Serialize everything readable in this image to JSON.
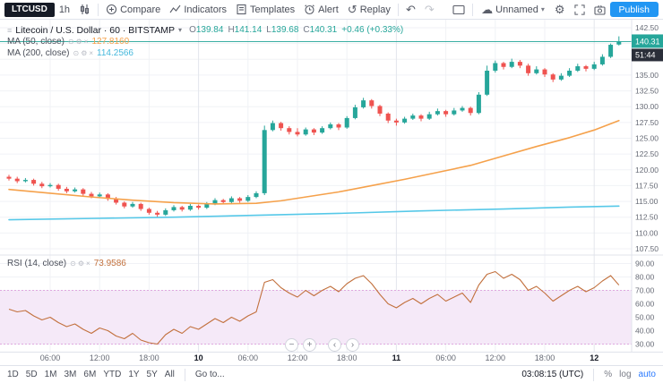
{
  "toolbar": {
    "symbol": "LTCUSD",
    "interval": "1h",
    "compare": "Compare",
    "indicators": "Indicators",
    "templates": "Templates",
    "alert": "Alert",
    "replay": "Replay",
    "layout_name": "Unnamed",
    "publish": "Publish"
  },
  "icons": {
    "replay": "↺",
    "undo": "↶",
    "redo": "↷",
    "gear": "⚙",
    "cloud": "☁",
    "caret_down": "▾",
    "menu": "≡",
    "eye": "⊙",
    "settings": "⚙",
    "close": "×"
  },
  "legend": {
    "title": "Litecoin / U.S. Dollar · 60 · BITSTAMP",
    "ohlc": {
      "o_label": "O",
      "o": "139.84",
      "h_label": "H",
      "h": "141.14",
      "l_label": "L",
      "l": "139.68",
      "c_label": "C",
      "c": "140.31",
      "change": "+0.46 (+0.33%)"
    },
    "ma50": {
      "label": "MA (50, close)",
      "value": "127.8160"
    },
    "ma200": {
      "label": "MA (200, close)",
      "value": "114.2566"
    },
    "rsi": {
      "label": "RSI (14, close)",
      "value": "73.9586"
    }
  },
  "chart_data": {
    "type": "candlestick",
    "colors": {
      "up": "#26a69a",
      "down": "#ef5350",
      "ma50": "#f5a14b",
      "ma200": "#56c8e8",
      "rsi_line": "#c2703d",
      "rsi_band_fill": "#f5e9f8",
      "rsi_band_border": "#dfa8df",
      "price_line": "#26a69a",
      "grid": "#f0f2f6",
      "grid_strong": "#e3e6ec",
      "axis_text": "#676b76",
      "countdown_bg": "#2a2e39"
    },
    "candles": [
      [
        118.9,
        119.2,
        118.3,
        118.6
      ],
      [
        118.6,
        118.9,
        117.9,
        118.2
      ],
      [
        118.2,
        118.7,
        118.0,
        118.4
      ],
      [
        118.4,
        118.6,
        117.5,
        117.8
      ],
      [
        117.8,
        118.1,
        117.1,
        117.4
      ],
      [
        117.4,
        117.9,
        117.2,
        117.6
      ],
      [
        117.6,
        117.8,
        116.7,
        117.0
      ],
      [
        117.0,
        117.3,
        116.3,
        116.6
      ],
      [
        116.6,
        117.2,
        116.4,
        116.9
      ],
      [
        116.9,
        117.1,
        115.9,
        116.2
      ],
      [
        116.2,
        116.5,
        115.5,
        115.8
      ],
      [
        115.8,
        116.4,
        115.6,
        116.1
      ],
      [
        116.1,
        116.3,
        115.1,
        115.4
      ],
      [
        115.4,
        115.7,
        114.5,
        114.8
      ],
      [
        114.8,
        115.0,
        113.9,
        114.2
      ],
      [
        114.2,
        114.9,
        114.0,
        114.6
      ],
      [
        114.6,
        114.8,
        113.5,
        113.8
      ],
      [
        113.8,
        114.0,
        112.9,
        113.2
      ],
      [
        113.2,
        113.5,
        112.5,
        112.9
      ],
      [
        112.9,
        113.9,
        112.7,
        113.6
      ],
      [
        113.6,
        114.4,
        113.4,
        114.1
      ],
      [
        114.1,
        114.3,
        113.4,
        113.7
      ],
      [
        113.7,
        114.6,
        113.5,
        114.3
      ],
      [
        114.3,
        114.5,
        113.7,
        114.0
      ],
      [
        114.0,
        114.9,
        113.8,
        114.6
      ],
      [
        114.6,
        115.5,
        114.4,
        115.2
      ],
      [
        115.2,
        115.4,
        114.6,
        114.9
      ],
      [
        114.9,
        115.8,
        114.7,
        115.5
      ],
      [
        115.5,
        115.7,
        114.8,
        115.1
      ],
      [
        115.1,
        116.0,
        114.9,
        115.7
      ],
      [
        115.7,
        116.6,
        115.5,
        116.3
      ],
      [
        116.3,
        127.0,
        116.0,
        126.3
      ],
      [
        126.3,
        127.8,
        126.1,
        127.4
      ],
      [
        127.4,
        127.6,
        126.2,
        126.6
      ],
      [
        126.6,
        126.9,
        125.6,
        126.0
      ],
      [
        126.0,
        126.6,
        125.3,
        125.6
      ],
      [
        125.6,
        126.7,
        125.4,
        126.4
      ],
      [
        126.4,
        126.6,
        125.5,
        125.9
      ],
      [
        125.9,
        126.9,
        125.7,
        126.6
      ],
      [
        126.6,
        127.5,
        126.4,
        127.2
      ],
      [
        127.2,
        127.4,
        126.3,
        126.7
      ],
      [
        126.7,
        128.5,
        126.5,
        128.2
      ],
      [
        128.2,
        130.3,
        128.0,
        129.9
      ],
      [
        129.9,
        131.4,
        129.7,
        131.0
      ],
      [
        131.0,
        131.2,
        129.7,
        130.1
      ],
      [
        130.1,
        130.3,
        128.5,
        128.9
      ],
      [
        128.9,
        129.1,
        127.4,
        127.8
      ],
      [
        127.8,
        128.1,
        127.0,
        127.5
      ],
      [
        127.5,
        128.4,
        127.3,
        128.1
      ],
      [
        128.1,
        128.9,
        127.9,
        128.6
      ],
      [
        128.6,
        128.8,
        127.7,
        128.1
      ],
      [
        128.1,
        129.2,
        127.9,
        128.8
      ],
      [
        128.8,
        129.7,
        128.6,
        129.3
      ],
      [
        129.3,
        129.5,
        128.4,
        128.8
      ],
      [
        128.8,
        129.8,
        128.6,
        129.4
      ],
      [
        129.4,
        130.1,
        129.2,
        129.8
      ],
      [
        129.8,
        130.0,
        128.6,
        129.0
      ],
      [
        129.0,
        132.3,
        128.8,
        131.9
      ],
      [
        131.9,
        136.5,
        131.7,
        135.7
      ],
      [
        135.7,
        137.3,
        135.4,
        136.9
      ],
      [
        136.9,
        137.1,
        135.9,
        136.3
      ],
      [
        136.3,
        137.6,
        136.1,
        137.1
      ],
      [
        137.1,
        137.4,
        136.1,
        136.5
      ],
      [
        136.5,
        136.8,
        134.9,
        135.3
      ],
      [
        135.3,
        136.4,
        135.1,
        135.9
      ],
      [
        135.9,
        136.1,
        134.7,
        135.1
      ],
      [
        135.1,
        135.3,
        133.9,
        134.3
      ],
      [
        134.3,
        135.3,
        134.1,
        134.9
      ],
      [
        134.9,
        136.1,
        134.7,
        135.7
      ],
      [
        135.7,
        136.8,
        135.5,
        136.4
      ],
      [
        136.4,
        136.6,
        135.6,
        136.0
      ],
      [
        136.0,
        137.1,
        135.8,
        136.7
      ],
      [
        136.7,
        138.3,
        136.5,
        137.9
      ],
      [
        137.9,
        140.0,
        137.7,
        139.8
      ],
      [
        139.84,
        141.14,
        139.68,
        140.31
      ]
    ],
    "ma50_points": [
      [
        0,
        116.9
      ],
      [
        5,
        116.3
      ],
      [
        10,
        115.7
      ],
      [
        15,
        115.2
      ],
      [
        20,
        114.8
      ],
      [
        25,
        114.6
      ],
      [
        30,
        114.7
      ],
      [
        33,
        115.1
      ],
      [
        36,
        115.7
      ],
      [
        40,
        116.5
      ],
      [
        44,
        117.5
      ],
      [
        48,
        118.5
      ],
      [
        52,
        119.6
      ],
      [
        56,
        120.7
      ],
      [
        60,
        122.2
      ],
      [
        64,
        123.7
      ],
      [
        68,
        125.1
      ],
      [
        71,
        126.3
      ],
      [
        74,
        127.8
      ]
    ],
    "ma200_points": [
      [
        0,
        112.1
      ],
      [
        10,
        112.3
      ],
      [
        20,
        112.5
      ],
      [
        30,
        112.8
      ],
      [
        40,
        113.1
      ],
      [
        50,
        113.5
      ],
      [
        60,
        113.8
      ],
      [
        68,
        114.1
      ],
      [
        74,
        114.26
      ]
    ],
    "rsi_values": [
      56,
      54,
      55,
      51,
      48,
      50,
      46,
      43,
      45,
      41,
      38,
      42,
      40,
      36,
      34,
      38,
      33,
      31,
      30,
      37,
      41,
      38,
      43,
      41,
      45,
      49,
      46,
      50,
      47,
      51,
      54,
      76,
      78,
      72,
      68,
      65,
      70,
      66,
      70,
      73,
      69,
      75,
      79,
      81,
      75,
      67,
      60,
      57,
      61,
      64,
      60,
      64,
      67,
      62,
      65,
      68,
      61,
      74,
      82,
      84,
      79,
      82,
      78,
      70,
      73,
      68,
      62,
      66,
      70,
      73,
      69,
      72,
      77,
      81,
      73.96
    ],
    "grid_prices": [
      142.5,
      140,
      137.5,
      135,
      132.5,
      130,
      127.5,
      125,
      122.5,
      120,
      117.5,
      115,
      112.5,
      110,
      107.5
    ],
    "price_ticks": [
      142.5,
      135,
      132.5,
      130,
      127.5,
      125,
      122.5,
      120,
      117.5,
      115,
      112.5,
      110,
      107.5
    ],
    "rsi_ticks": [
      90,
      80,
      70,
      60,
      50,
      40,
      30
    ],
    "rsi_band": [
      70,
      30
    ],
    "price_label": {
      "value": "140.31",
      "countdown": "51:44"
    },
    "time_labels": [
      {
        "t": "06:00",
        "i": 5
      },
      {
        "t": "12:00",
        "i": 11
      },
      {
        "t": "18:00",
        "i": 17
      },
      {
        "t": "10",
        "i": 23,
        "day": true
      },
      {
        "t": "06:00",
        "i": 29
      },
      {
        "t": "12:00",
        "i": 35
      },
      {
        "t": "18:00",
        "i": 41
      },
      {
        "t": "11",
        "i": 47,
        "day": true
      },
      {
        "t": "06:00",
        "i": 53
      },
      {
        "t": "12:00",
        "i": 59
      },
      {
        "t": "18:00",
        "i": 65
      },
      {
        "t": "12",
        "i": 71,
        "day": true
      }
    ]
  },
  "nav": {
    "zoom_out": "−",
    "zoom_in": "+",
    "left": "‹",
    "right": "›"
  },
  "bottom": {
    "ranges": [
      "1D",
      "5D",
      "1M",
      "3M",
      "6M",
      "YTD",
      "1Y",
      "5Y",
      "All"
    ],
    "goto": "Go to...",
    "clock": "03:08:15 (UTC)",
    "percent": "%",
    "log": "log",
    "auto": "auto"
  }
}
